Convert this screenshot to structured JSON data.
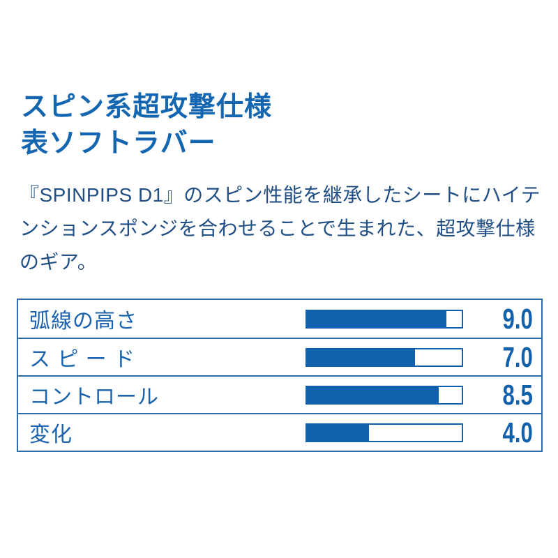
{
  "page": {
    "title_line1": "スピン系超攻撃仕様",
    "title_line2": "表ソフトラバー",
    "description": "『SPINPIPS D1』のスピン性能を継承したシートにハイテンションスポンジを合わせることで生まれた、超攻撃仕様のギア。"
  },
  "colors": {
    "accent_blue": "#1566b1",
    "bar_fill_blue": "#1261ac",
    "table_border_blue": "#2e6ca8",
    "body_text_navy": "#214e83",
    "background": "#ffffff"
  },
  "chart_data": {
    "type": "bar",
    "orientation": "horizontal",
    "title": "",
    "categories": [
      "弧線の高さ",
      "ス ピ ー ド",
      "コントロール",
      "変化"
    ],
    "values": [
      9.0,
      7.0,
      8.5,
      4.0
    ],
    "value_labels": [
      "9.0",
      "7.0",
      "8.5",
      "4.0"
    ],
    "xlim": [
      0,
      10
    ],
    "grid": false,
    "legend": false
  }
}
